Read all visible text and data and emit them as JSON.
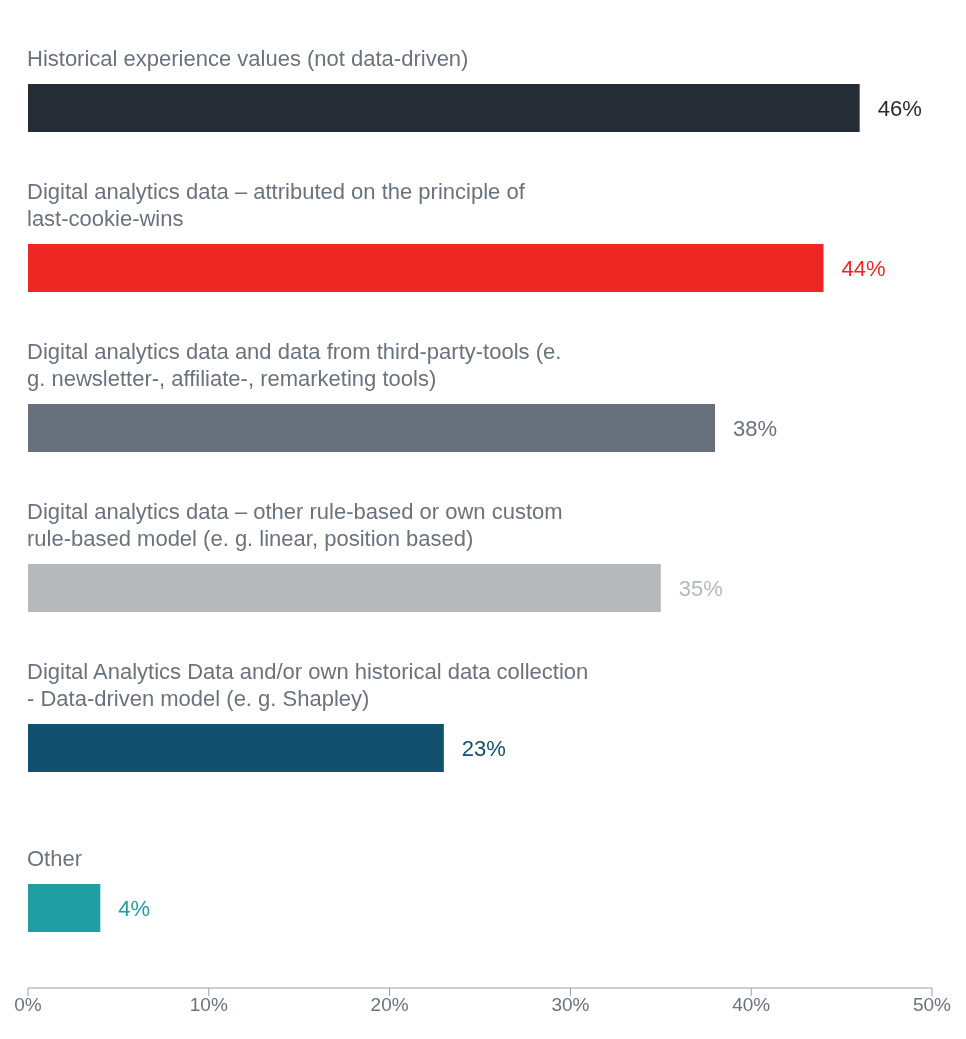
{
  "chart_data": {
    "type": "bar",
    "orientation": "horizontal",
    "categories": [
      "Historical experience values (not data-driven)",
      "Digital analytics data – attributed on the principle of last-cookie-wins",
      "Digital analytics data and data from third-party-tools (e. g. newsletter-, affiliate-, remarketing tools)",
      "Digital analytics data – other rule-based or own custom rule-based model (e. g. linear, position based)",
      "Digital Analytics Data and/or own historical data collection - Data-driven model (e. g. Shapley)",
      "Other"
    ],
    "values": [
      46,
      44,
      38,
      35,
      23,
      4
    ],
    "colors": [
      "#262c35",
      "#ee2624",
      "#68717b",
      "#b5b9bc",
      "#12516e",
      "#1f9ea3"
    ],
    "value_labels": [
      "46%",
      "44%",
      "38%",
      "35%",
      "23%",
      "4%"
    ],
    "xlim": [
      0,
      50
    ],
    "xticks": [
      {
        "value": 0,
        "label": "0%"
      },
      {
        "value": 10,
        "label": "10%"
      },
      {
        "value": 20,
        "label": "20%"
      },
      {
        "value": 30,
        "label": "30%"
      },
      {
        "value": 40,
        "label": "40%"
      },
      {
        "value": 50,
        "label": "50%"
      }
    ],
    "grid": false
  }
}
